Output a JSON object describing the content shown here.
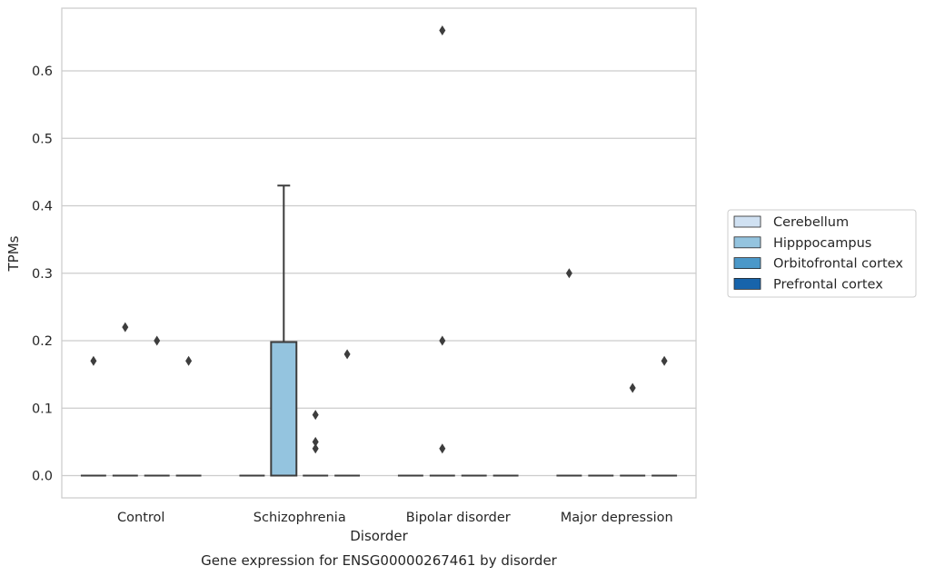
{
  "chart_data": {
    "type": "box",
    "caption": "Gene expression for ENSG00000267461 by disorder",
    "xlabel": "Disorder",
    "ylabel": "TPMs",
    "ylim": [
      -0.033,
      0.693
    ],
    "yticks": [
      0.0,
      0.1,
      0.2,
      0.3,
      0.4,
      0.5,
      0.6
    ],
    "ytick_labels": [
      "0.0",
      "0.1",
      "0.2",
      "0.3",
      "0.4",
      "0.5",
      "0.6"
    ],
    "grid": true,
    "legend_position": "right",
    "categories": [
      "Control",
      "Schizophrenia",
      "Bipolar disorder",
      "Major depression"
    ],
    "series": [
      {
        "name": "Cerebellum",
        "color": "#d0e1f2",
        "boxes": [
          {
            "q1": 0,
            "median": 0,
            "q3": 0,
            "whisker_low": 0,
            "whisker_high": 0,
            "outliers": [
              0.17
            ]
          },
          {
            "q1": 0,
            "median": 0,
            "q3": 0,
            "whisker_low": 0,
            "whisker_high": 0,
            "outliers": []
          },
          {
            "q1": 0,
            "median": 0,
            "q3": 0,
            "whisker_low": 0,
            "whisker_high": 0,
            "outliers": []
          },
          {
            "q1": 0,
            "median": 0,
            "q3": 0,
            "whisker_low": 0,
            "whisker_high": 0,
            "outliers": [
              0.3
            ]
          }
        ]
      },
      {
        "name": "Hipppocampus",
        "color": "#94c4df",
        "boxes": [
          {
            "q1": 0,
            "median": 0,
            "q3": 0,
            "whisker_low": 0,
            "whisker_high": 0,
            "outliers": [
              0.22
            ]
          },
          {
            "q1": 0,
            "median": 0,
            "q3": 0.198,
            "whisker_low": 0,
            "whisker_high": 0.43,
            "outliers": []
          },
          {
            "q1": 0,
            "median": 0,
            "q3": 0,
            "whisker_low": 0,
            "whisker_high": 0,
            "outliers": [
              0.66,
              0.2,
              0.04
            ]
          },
          {
            "q1": 0,
            "median": 0,
            "q3": 0,
            "whisker_low": 0,
            "whisker_high": 0,
            "outliers": []
          }
        ]
      },
      {
        "name": "Orbitofrontal cortex",
        "color": "#4a98c9",
        "boxes": [
          {
            "q1": 0,
            "median": 0,
            "q3": 0,
            "whisker_low": 0,
            "whisker_high": 0,
            "outliers": [
              0.2
            ]
          },
          {
            "q1": 0,
            "median": 0,
            "q3": 0,
            "whisker_low": 0,
            "whisker_high": 0,
            "outliers": [
              0.09,
              0.05,
              0.04
            ]
          },
          {
            "q1": 0,
            "median": 0,
            "q3": 0,
            "whisker_low": 0,
            "whisker_high": 0,
            "outliers": []
          },
          {
            "q1": 0,
            "median": 0,
            "q3": 0,
            "whisker_low": 0,
            "whisker_high": 0,
            "outliers": [
              0.13
            ]
          }
        ]
      },
      {
        "name": "Prefrontal cortex",
        "color": "#1764ab",
        "boxes": [
          {
            "q1": 0,
            "median": 0,
            "q3": 0,
            "whisker_low": 0,
            "whisker_high": 0,
            "outliers": [
              0.17
            ]
          },
          {
            "q1": 0,
            "median": 0,
            "q3": 0,
            "whisker_low": 0,
            "whisker_high": 0,
            "outliers": [
              0.18
            ]
          },
          {
            "q1": 0,
            "median": 0,
            "q3": 0,
            "whisker_low": 0,
            "whisker_high": 0,
            "outliers": []
          },
          {
            "q1": 0,
            "median": 0,
            "q3": 0,
            "whisker_low": 0,
            "whisker_high": 0,
            "outliers": [
              0.17
            ]
          }
        ]
      }
    ]
  }
}
